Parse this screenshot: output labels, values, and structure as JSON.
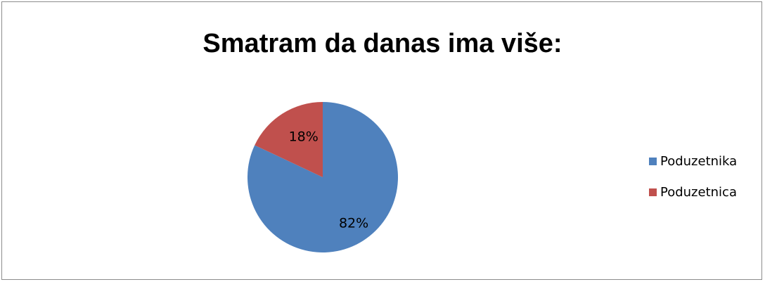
{
  "chart_data": {
    "type": "pie",
    "title": "Smatram da danas ima više:",
    "categories": [
      "Poduzetnika",
      "Poduzetnica"
    ],
    "values": [
      82,
      18
    ],
    "data_labels": [
      "82%",
      "18%"
    ],
    "colors": [
      "#4F81BD",
      "#C0504D"
    ],
    "legend_position": "right"
  }
}
